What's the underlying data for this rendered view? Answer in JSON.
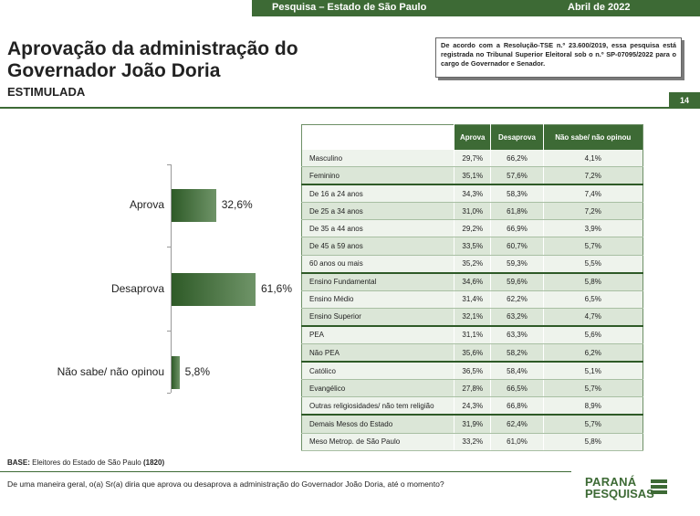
{
  "header": {
    "left": "Pesquisa – Estado de São Paulo",
    "right": "Abril de 2022"
  },
  "title_line1": "Aprovação da administração do",
  "title_line2": "Governador João Doria",
  "subtitle": "ESTIMULADA",
  "notice": "De acordo com a Resolução-TSE n.º 23.600/2019, essa pesquisa está registrada no Tribunal Superior Eleitoral sob o n.º SP-07095/2022 para o cargo de Governador e Senador.",
  "page_number": "14",
  "chart_data": {
    "type": "bar",
    "orientation": "horizontal",
    "categories": [
      "Aprova",
      "Desaprova",
      "Não sabe/ não opinou"
    ],
    "values": [
      32.6,
      61.6,
      5.8
    ],
    "value_labels": [
      "32,6%",
      "61,6%",
      "5,8%"
    ],
    "xlim": [
      0,
      100
    ],
    "colors": [
      "#2e5a27",
      "#6f9468"
    ]
  },
  "table": {
    "headers": [
      "Aprova",
      "Desaprova",
      "Não sabe/ não opinou"
    ],
    "rows": [
      {
        "label": "Masculino",
        "values": [
          "29,7%",
          "66,2%",
          "4,1%"
        ]
      },
      {
        "label": "Feminino",
        "values": [
          "35,1%",
          "57,6%",
          "7,2%"
        ]
      },
      {
        "label": "De 16 a 24 anos",
        "values": [
          "34,3%",
          "58,3%",
          "7,4%"
        ]
      },
      {
        "label": "De 25 a 34 anos",
        "values": [
          "31,0%",
          "61,8%",
          "7,2%"
        ]
      },
      {
        "label": "De 35 a 44 anos",
        "values": [
          "29,2%",
          "66,9%",
          "3,9%"
        ]
      },
      {
        "label": "De 45 a 59 anos",
        "values": [
          "33,5%",
          "60,7%",
          "5,7%"
        ]
      },
      {
        "label": "60 anos ou mais",
        "values": [
          "35,2%",
          "59,3%",
          "5,5%"
        ]
      },
      {
        "label": "Ensino Fundamental",
        "values": [
          "34,6%",
          "59,6%",
          "5,8%"
        ]
      },
      {
        "label": "Ensino Médio",
        "values": [
          "31,4%",
          "62,2%",
          "6,5%"
        ]
      },
      {
        "label": "Ensino Superior",
        "values": [
          "32,1%",
          "63,2%",
          "4,7%"
        ]
      },
      {
        "label": "PEA",
        "values": [
          "31,1%",
          "63,3%",
          "5,6%"
        ]
      },
      {
        "label": "Não PEA",
        "values": [
          "35,6%",
          "58,2%",
          "6,2%"
        ]
      },
      {
        "label": "Católico",
        "values": [
          "36,5%",
          "58,4%",
          "5,1%"
        ]
      },
      {
        "label": "Evangélico",
        "values": [
          "27,8%",
          "66,5%",
          "5,7%"
        ]
      },
      {
        "label": "Outras religiosidades/ não tem religião",
        "values": [
          "24,3%",
          "66,8%",
          "8,9%"
        ]
      },
      {
        "label": "Demais Mesos do Estado",
        "values": [
          "31,9%",
          "62,4%",
          "5,7%"
        ]
      },
      {
        "label": "Meso Metrop. de São Paulo",
        "values": [
          "33,2%",
          "61,0%",
          "5,8%"
        ]
      }
    ]
  },
  "footer": {
    "base_label": "BASE:",
    "base_text": " Eleitores do Estado de São Paulo ",
    "base_n": "(1820)",
    "question": "De uma maneira geral, o(a) Sr(a) diria que aprova ou desaprova a administração do Governador João Doria, até o momento?",
    "logo_line1": "PARANÁ",
    "logo_line2": "PESQUISAS"
  }
}
